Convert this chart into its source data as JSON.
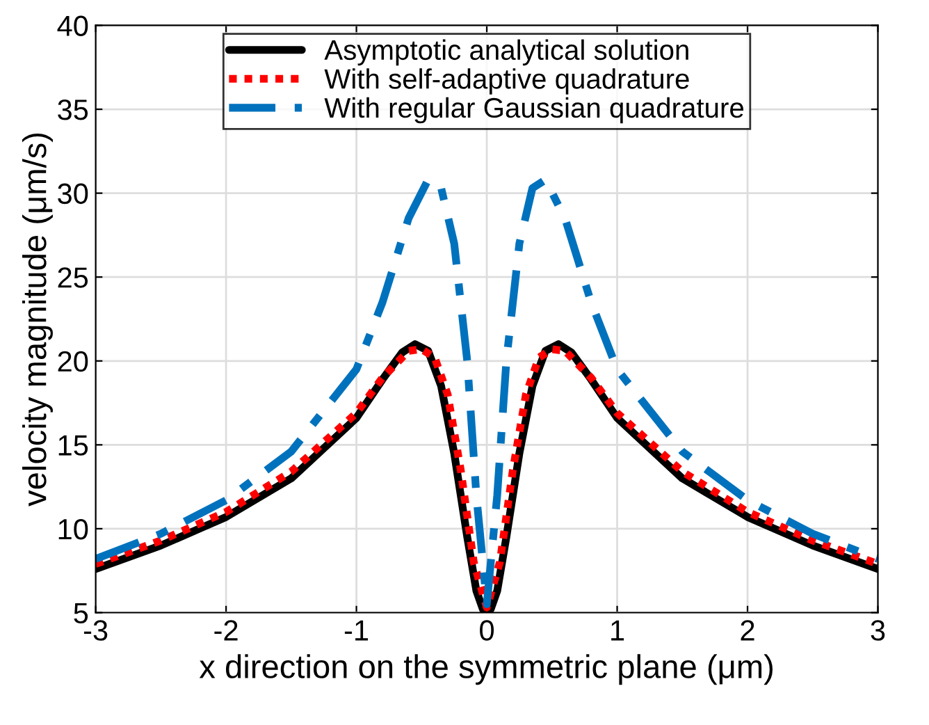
{
  "chart_data": {
    "type": "line",
    "xlabel": "x direction on the symmetric plane (μm)",
    "ylabel": "velocity magnitude (μm/s)",
    "xlim": [
      -3,
      3
    ],
    "ylim": [
      5,
      40
    ],
    "xticks": [
      -3,
      -2,
      -1,
      0,
      1,
      2,
      3
    ],
    "yticks": [
      5,
      10,
      15,
      20,
      25,
      30,
      35,
      40
    ],
    "grid": true,
    "legend": "top",
    "marker": "none",
    "series": [
      {
        "name": "Asymptotic analytical solution",
        "color": "#000000",
        "line_style": "solid",
        "x": [
          -3,
          -2.5,
          -2,
          -1.5,
          -1,
          -0.8,
          -0.65,
          -0.55,
          -0.45,
          -0.35,
          -0.25,
          -0.15,
          -0.08,
          -0.03,
          0,
          0.03,
          0.08,
          0.15,
          0.25,
          0.35,
          0.45,
          0.55,
          0.65,
          0.8,
          1,
          1.5,
          2,
          2.5,
          3
        ],
        "values": [
          7.6,
          9.0,
          10.7,
          13.0,
          16.6,
          18.9,
          20.5,
          21.0,
          20.6,
          18.5,
          14.5,
          9.5,
          6.3,
          5.2,
          5.0,
          5.2,
          6.3,
          9.5,
          14.5,
          18.5,
          20.6,
          21.0,
          20.5,
          18.9,
          16.6,
          13.0,
          10.7,
          9.0,
          7.6
        ]
      },
      {
        "name": "With self-adaptive quadrature",
        "color": "#ff0000",
        "line_style": "dotted",
        "x": [
          -3,
          -2.5,
          -2,
          -1.5,
          -1,
          -0.8,
          -0.6,
          -0.5,
          -0.4,
          -0.3,
          -0.2,
          -0.1,
          0,
          0.1,
          0.2,
          0.3,
          0.4,
          0.5,
          0.6,
          0.8,
          1,
          1.5,
          2,
          2.5,
          3
        ],
        "values": [
          7.9,
          9.3,
          11.0,
          13.4,
          16.9,
          19.0,
          20.6,
          20.7,
          20.2,
          18.0,
          13.5,
          8.0,
          5.3,
          8.0,
          13.5,
          18.0,
          20.2,
          20.7,
          20.6,
          19.0,
          16.9,
          13.4,
          11.0,
          9.3,
          7.9
        ]
      },
      {
        "name": "With regular Gaussian quadrature",
        "color": "#0072bd",
        "line_style": "dashdot",
        "x": [
          -3,
          -2.5,
          -2,
          -1.5,
          -1,
          -0.8,
          -0.6,
          -0.45,
          -0.35,
          -0.25,
          -0.15,
          -0.08,
          0,
          0.08,
          0.15,
          0.25,
          0.35,
          0.45,
          0.6,
          0.8,
          1,
          1.5,
          2,
          2.5,
          3
        ],
        "values": [
          8.2,
          9.7,
          11.7,
          14.6,
          19.5,
          23.5,
          28.5,
          30.8,
          30.3,
          27.0,
          20.0,
          12.0,
          5.5,
          12.0,
          20.0,
          27.0,
          30.3,
          30.8,
          28.5,
          23.5,
          19.5,
          14.6,
          11.7,
          9.7,
          8.2
        ]
      }
    ]
  }
}
